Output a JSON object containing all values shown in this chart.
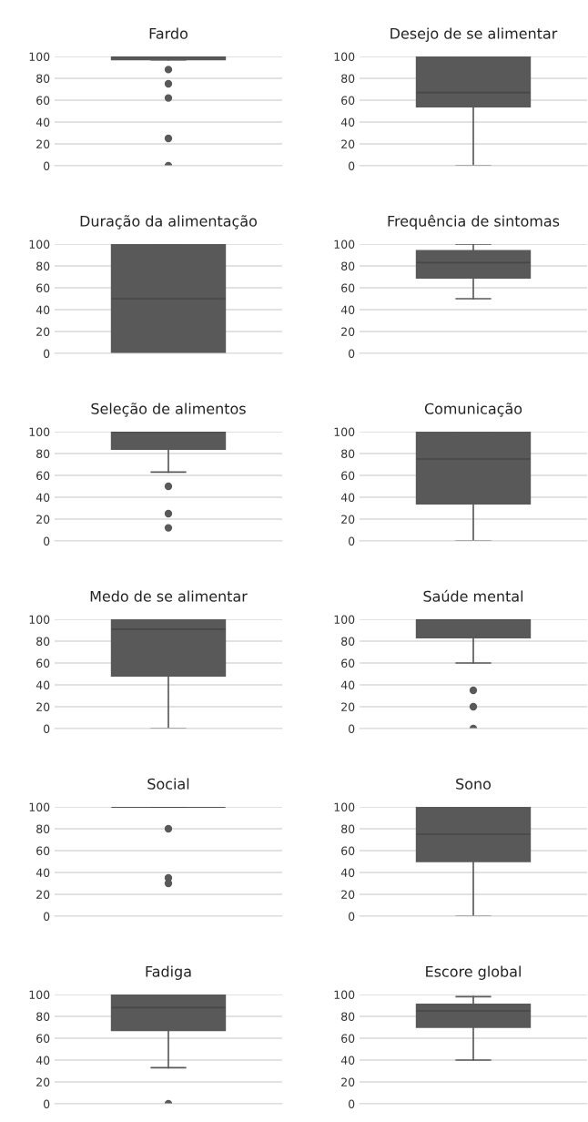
{
  "chart_data": [
    {
      "type": "box",
      "title": "Fardo",
      "categories": [
        null
      ],
      "series": [
        {
          "color": "#595959",
          "boxes": [
            {
              "low": 97,
              "q1": 97,
              "median": 100,
              "q3": 100,
              "high": 100,
              "outliers": [
                88,
                75,
                62,
                25,
                0
              ]
            }
          ]
        }
      ],
      "ylim": [
        0,
        100
      ],
      "yticks": [
        0,
        20,
        40,
        60,
        80,
        100
      ],
      "grid": "y"
    },
    {
      "type": "box",
      "title": "Desejo de se alimentar",
      "categories": [
        null
      ],
      "series": [
        {
          "color": "#595959",
          "boxes": [
            {
              "low": 0,
              "q1": 54,
              "median": 67,
              "q3": 100,
              "high": 100
            }
          ]
        }
      ],
      "ylim": [
        0,
        100
      ],
      "yticks": [
        0,
        20,
        40,
        60,
        80,
        100
      ],
      "grid": "y"
    },
    {
      "type": "box",
      "title": "Duração da alimentação",
      "categories": [
        null
      ],
      "series": [
        {
          "color": "#595959",
          "boxes": [
            {
              "low": 0,
              "q1": 0,
              "median": 50,
              "q3": 100,
              "high": 100
            }
          ]
        }
      ],
      "ylim": [
        0,
        100
      ],
      "yticks": [
        0,
        20,
        40,
        60,
        80,
        100
      ],
      "grid": "y"
    },
    {
      "type": "box",
      "title": "Frequência de sintomas",
      "categories": [
        null
      ],
      "series": [
        {
          "color": "#595959",
          "boxes": [
            {
              "low": 50,
              "q1": 69,
              "median": 83,
              "q3": 94,
              "high": 100
            }
          ]
        }
      ],
      "ylim": [
        0,
        100
      ],
      "yticks": [
        0,
        20,
        40,
        60,
        80,
        100
      ],
      "grid": "y"
    },
    {
      "type": "box",
      "title": "Seleção de alimentos",
      "categories": [
        null
      ],
      "series": [
        {
          "color": "#595959",
          "boxes": [
            {
              "low": 63,
              "q1": 84,
              "median": 100,
              "q3": 100,
              "high": 100,
              "outliers": [
                50,
                25,
                12
              ]
            }
          ]
        }
      ],
      "ylim": [
        0,
        100
      ],
      "yticks": [
        0,
        20,
        40,
        60,
        80,
        100
      ],
      "grid": "y"
    },
    {
      "type": "box",
      "title": "Comunicação",
      "categories": [
        null
      ],
      "series": [
        {
          "color": "#595959",
          "boxes": [
            {
              "low": 0,
              "q1": 34,
              "median": 75,
              "q3": 100,
              "high": 100
            }
          ]
        }
      ],
      "ylim": [
        0,
        100
      ],
      "yticks": [
        0,
        20,
        40,
        60,
        80,
        100
      ],
      "grid": "y"
    },
    {
      "type": "box",
      "title": "Medo de se alimentar",
      "categories": [
        null
      ],
      "series": [
        {
          "color": "#595959",
          "boxes": [
            {
              "low": 0,
              "q1": 48,
              "median": 91,
              "q3": 100,
              "high": 100
            }
          ]
        }
      ],
      "ylim": [
        0,
        100
      ],
      "yticks": [
        0,
        20,
        40,
        60,
        80,
        100
      ],
      "grid": "y"
    },
    {
      "type": "box",
      "title": "Saúde mental",
      "categories": [
        null
      ],
      "series": [
        {
          "color": "#595959",
          "boxes": [
            {
              "low": 60,
              "q1": 83,
              "median": 100,
              "q3": 100,
              "high": 100,
              "outliers": [
                35,
                20,
                0
              ]
            }
          ]
        }
      ],
      "ylim": [
        0,
        100
      ],
      "yticks": [
        0,
        20,
        40,
        60,
        80,
        100
      ],
      "grid": "y"
    },
    {
      "type": "box",
      "title": "Social",
      "categories": [
        null
      ],
      "series": [
        {
          "color": "#595959",
          "boxes": [
            {
              "low": 100,
              "q1": 100,
              "median": 100,
              "q3": 100,
              "high": 100,
              "outliers": [
                80,
                35,
                30
              ]
            }
          ]
        }
      ],
      "ylim": [
        0,
        100
      ],
      "yticks": [
        0,
        20,
        40,
        60,
        80,
        100
      ],
      "grid": "y"
    },
    {
      "type": "box",
      "title": "Sono",
      "categories": [
        null
      ],
      "series": [
        {
          "color": "#595959",
          "boxes": [
            {
              "low": 0,
              "q1": 50,
              "median": 75,
              "q3": 100,
              "high": 100
            }
          ]
        }
      ],
      "ylim": [
        0,
        100
      ],
      "yticks": [
        0,
        20,
        40,
        60,
        80,
        100
      ],
      "grid": "y"
    },
    {
      "type": "box",
      "title": "Fadiga",
      "categories": [
        null
      ],
      "series": [
        {
          "color": "#595959",
          "boxes": [
            {
              "low": 33,
              "q1": 67,
              "median": 88,
              "q3": 100,
              "high": 100,
              "outliers": [
                0
              ]
            }
          ]
        }
      ],
      "ylim": [
        0,
        100
      ],
      "yticks": [
        0,
        20,
        40,
        60,
        80,
        100
      ],
      "grid": "y"
    },
    {
      "type": "box",
      "title": "Escore global",
      "categories": [
        null
      ],
      "series": [
        {
          "color": "#595959",
          "boxes": [
            {
              "low": 40,
              "q1": 70,
              "median": 85,
              "q3": 91,
              "high": 98
            }
          ]
        }
      ],
      "ylim": [
        0,
        100
      ],
      "yticks": [
        0,
        20,
        40,
        60,
        80,
        100
      ],
      "grid": "y"
    }
  ]
}
